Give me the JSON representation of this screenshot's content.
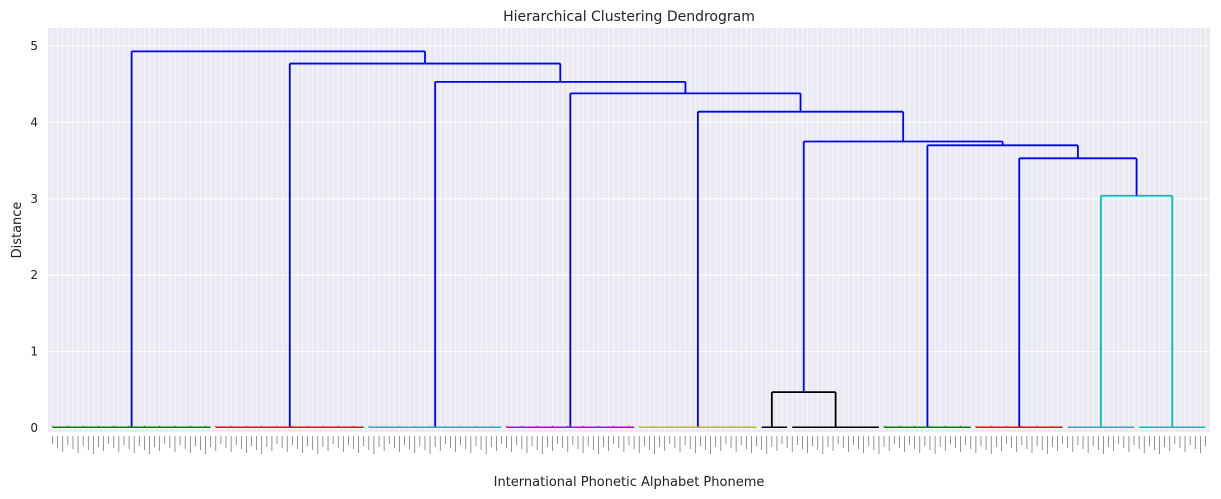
{
  "chart_data": {
    "type": "dendrogram",
    "title": "Hierarchical Clustering Dendrogram",
    "xlabel": "International Phonetic Alphabet Phoneme",
    "ylabel": "Distance",
    "ylim": [
      0,
      5.2
    ],
    "yticks": [
      "0",
      "1",
      "2",
      "3",
      "4",
      "5"
    ],
    "grid": true,
    "background": "#eaeaf2",
    "link_color_above_threshold": "#0000ff",
    "clusters": [
      {
        "color": "#008000",
        "leaf_start": 0,
        "leaf_end": 31
      },
      {
        "color": "#ff0000",
        "leaf_start": 32,
        "leaf_end": 61
      },
      {
        "color": "#00bfbf",
        "leaf_start": 62,
        "leaf_end": 88
      },
      {
        "color": "#bf00bf",
        "leaf_start": 89,
        "leaf_end": 114
      },
      {
        "color": "#bfbf00",
        "leaf_start": 115,
        "leaf_end": 138
      },
      {
        "color": "#000000",
        "leaf_start": 139,
        "leaf_end": 162,
        "merge_height": 0.47
      },
      {
        "color": "#008000",
        "leaf_start": 163,
        "leaf_end": 180
      },
      {
        "color": "#ff0000",
        "leaf_start": 181,
        "leaf_end": 198
      },
      {
        "color": "#00bfbf",
        "leaf_start": 199,
        "leaf_end": 226,
        "merge_height": 3.04
      }
    ],
    "leaf_count": 227,
    "links": [
      {
        "id": "A",
        "left": "c0",
        "right": "B",
        "height": 4.93
      },
      {
        "id": "B",
        "left": "c1",
        "right": "C",
        "height": 4.77
      },
      {
        "id": "C",
        "left": "c2",
        "right": "D",
        "height": 4.53
      },
      {
        "id": "D",
        "left": "c3",
        "right": "E",
        "height": 4.38
      },
      {
        "id": "E",
        "left": "c4",
        "right": "F",
        "height": 4.14
      },
      {
        "id": "F",
        "left": "c5",
        "right": "G",
        "height": 3.75
      },
      {
        "id": "G",
        "left": "c6",
        "right": "H",
        "height": 3.7
      },
      {
        "id": "H",
        "left": "c7",
        "right": "c8",
        "height": 3.53
      }
    ]
  }
}
